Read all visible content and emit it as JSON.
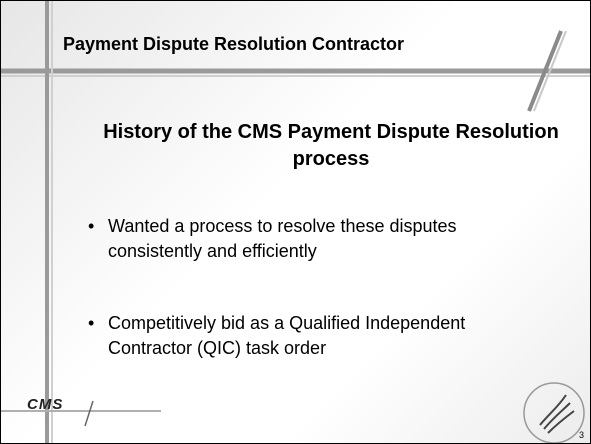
{
  "header": {
    "title": "Payment Dispute Resolution Contractor"
  },
  "heading": "History of the CMS Payment Dispute Resolution process",
  "bullets": [
    "Wanted a process to resolve these disputes consistently and efficiently",
    "Competitively bid as a Qualified Independent Contractor (QIC) task order"
  ],
  "footer": {
    "logo": "CMS",
    "page_number": "3"
  }
}
